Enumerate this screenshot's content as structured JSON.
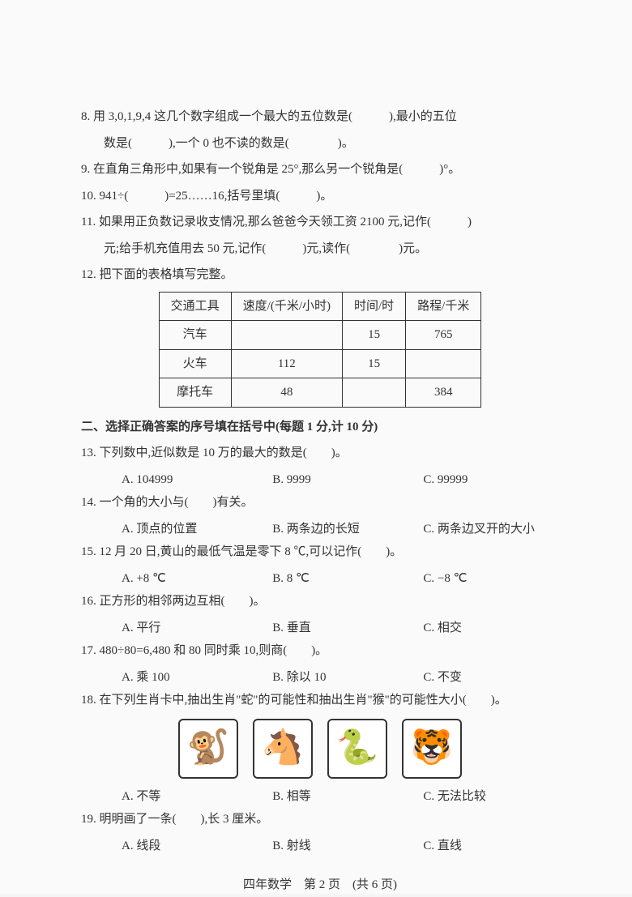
{
  "q8": {
    "line1": "8. 用 3,0,1,9,4 这几个数字组成一个最大的五位数是(　　　),最小的五位",
    "line2": "数是(　　　),一个 0 也不读的数是(　　　　)。"
  },
  "q9": "9. 在直角三角形中,如果有一个锐角是 25°,那么另一个锐角是(　　　)°。",
  "q10": "10. 941÷(　　　)=25……16,括号里填(　　　)。",
  "q11": {
    "line1": "11. 如果用正负数记录收支情况,那么爸爸今天领工资 2100 元,记作(　　　)",
    "line2": "元;给手机充值用去 50 元,记作(　　　)元,读作(　　　　)元。"
  },
  "q12": {
    "stem": "12. 把下面的表格填写完整。",
    "table": {
      "headers": [
        "交通工具",
        "速度/(千米/小时)",
        "时间/时",
        "路程/千米"
      ],
      "rows": [
        [
          "汽车",
          "",
          "15",
          "765"
        ],
        [
          "火车",
          "112",
          "15",
          ""
        ],
        [
          "摩托车",
          "48",
          "",
          "384"
        ]
      ]
    }
  },
  "section2": "二、选择正确答案的序号填在括号中(每题 1 分,计 10 分)",
  "q13": {
    "stem": "13. 下列数中,近似数是 10 万的最大的数是(　　)。",
    "A": "A. 104999",
    "B": "B. 9999",
    "C": "C. 99999"
  },
  "q14": {
    "stem": "14. 一个角的大小与(　　)有关。",
    "A": "A. 顶点的位置",
    "B": "B. 两条边的长短",
    "C": "C. 两条边叉开的大小"
  },
  "q15": {
    "stem": "15. 12 月 20 日,黄山的最低气温是零下 8 ℃,可以记作(　　)。",
    "A": "A. +8 ℃",
    "B": "B. 8 ℃",
    "C": "C. −8 ℃"
  },
  "q16": {
    "stem": "16. 正方形的相邻两边互相(　　)。",
    "A": "A. 平行",
    "B": "B. 垂直",
    "C": "C. 相交"
  },
  "q17": {
    "stem": "17. 480÷80=6,480 和 80 同时乘 10,则商(　　)。",
    "A": "A. 乘 100",
    "B": "B. 除以 10",
    "C": "C. 不变"
  },
  "q18": {
    "stem": "18. 在下列生肖卡中,抽出生肖\"蛇\"的可能性和抽出生肖\"猴\"的可能性大小(　　)。",
    "zodiac": [
      "🐒",
      "🐴",
      "🐍",
      "🐯"
    ],
    "A": "A. 不等",
    "B": "B. 相等",
    "C": "C. 无法比较"
  },
  "q19": {
    "stem": "19. 明明画了一条(　　),长 3 厘米。",
    "A": "A. 线段",
    "B": "B. 射线",
    "C": "C. 直线"
  },
  "footer": "四年数学　第 2 页　(共 6 页)"
}
